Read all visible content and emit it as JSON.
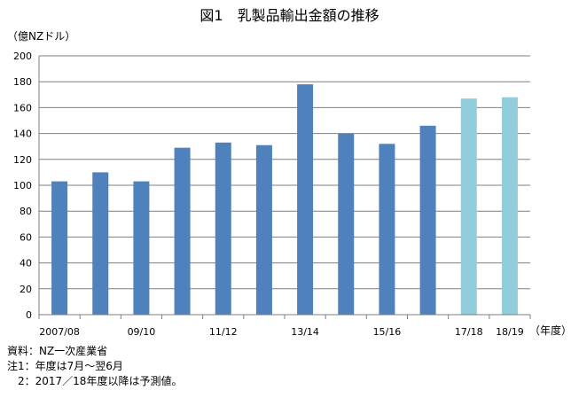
{
  "chart_data": {
    "type": "bar",
    "title": "図1　乳製品輸出金額の推移",
    "ylabel": "（億NZドル）",
    "xlabel": "（年度）",
    "ylim": [
      0,
      200
    ],
    "yticks": [
      0,
      20,
      40,
      60,
      80,
      100,
      120,
      140,
      160,
      180,
      200
    ],
    "grid": true,
    "categories": [
      "2007/08",
      "",
      "09/10",
      "",
      "11/12",
      "",
      "13/14",
      "",
      "15/16",
      "",
      "17/18",
      "18/19"
    ],
    "values": [
      103,
      110,
      103,
      129,
      133,
      131,
      178,
      140,
      132,
      146,
      167,
      168
    ],
    "forecast_from_index": 10,
    "colors": {
      "actual": "#4f81bd",
      "forecast": "#92cddc",
      "grid": "#7f7f7f",
      "axis": "#7f7f7f"
    }
  },
  "notes": [
    "資料：NZ一次産業省",
    "注1：年度は7月～翌6月",
    "　2：2017／18年度以降は予測値。"
  ]
}
